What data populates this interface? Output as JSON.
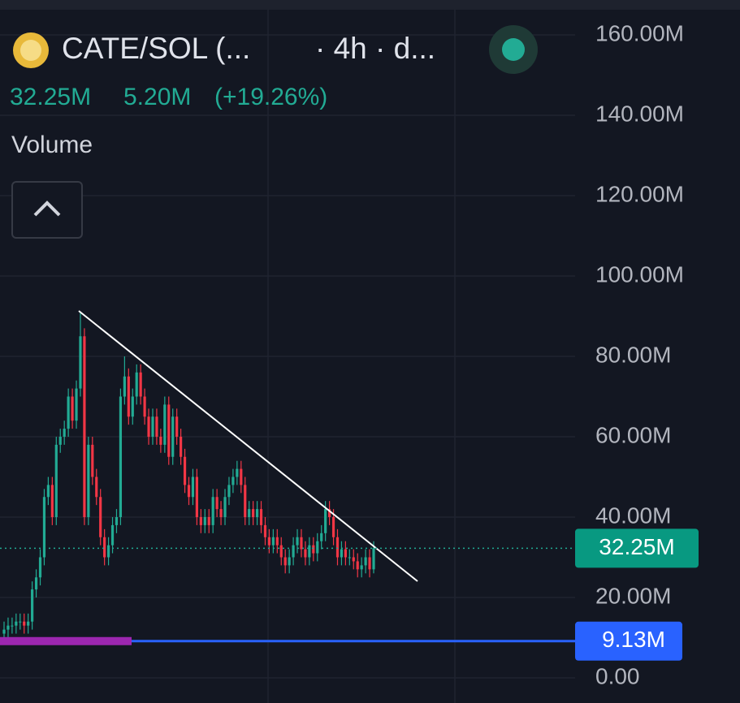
{
  "header": {
    "symbol": "CATE/SOL (...",
    "interval": "· 4h · d...",
    "last": "32.25M",
    "change": "5.20M",
    "change_pct": "(+19.26%)",
    "indicator": "Volume"
  },
  "chart_data": {
    "type": "candlestick",
    "up_color": "#22ab94",
    "down_color": "#f23645",
    "ylim": [
      0,
      160
    ],
    "yticks": [
      {
        "value": 0,
        "label": "0.00"
      },
      {
        "value": 20,
        "label": "20.00M"
      },
      {
        "value": 40,
        "label": "40.00M"
      },
      {
        "value": 60,
        "label": "60.00M"
      },
      {
        "value": 80,
        "label": "80.00M"
      },
      {
        "value": 100,
        "label": "100.00M"
      },
      {
        "value": 120,
        "label": "120.00M"
      },
      {
        "value": 140,
        "label": "140.00M"
      },
      {
        "value": 160,
        "label": "160.00M"
      }
    ],
    "grid": true,
    "open": [
      11,
      12,
      13,
      13,
      14,
      14,
      13,
      14,
      22,
      25,
      30,
      45,
      48,
      40,
      58,
      60,
      62,
      70,
      64,
      72,
      85,
      40,
      58,
      50,
      45,
      35,
      30,
      33,
      38,
      40,
      70,
      75,
      65,
      70,
      76,
      70,
      65,
      60,
      65,
      60,
      58,
      68,
      55,
      65,
      60,
      55,
      48,
      45,
      50,
      40,
      38,
      40,
      38,
      45,
      42,
      40,
      45,
      48,
      50,
      52,
      48,
      40,
      42,
      40,
      42,
      38,
      35,
      33,
      35,
      33,
      30,
      28,
      30,
      33,
      35,
      32,
      30,
      33,
      31,
      34,
      36,
      42,
      40,
      35,
      30,
      32,
      30,
      30,
      29,
      27,
      28,
      30,
      27
    ],
    "high": [
      14,
      15,
      15,
      16,
      16,
      16,
      16,
      24,
      27,
      32,
      47,
      50,
      50,
      60,
      62,
      64,
      72,
      72,
      74,
      91,
      87,
      60,
      60,
      52,
      47,
      37,
      35,
      40,
      42,
      72,
      80,
      77,
      72,
      78,
      78,
      72,
      67,
      67,
      67,
      62,
      70,
      70,
      67,
      67,
      62,
      57,
      50,
      52,
      52,
      42,
      42,
      42,
      47,
      47,
      44,
      47,
      50,
      52,
      54,
      54,
      50,
      44,
      44,
      44,
      44,
      40,
      37,
      37,
      37,
      35,
      32,
      32,
      35,
      37,
      37,
      34,
      35,
      35,
      36,
      38,
      44,
      44,
      42,
      37,
      34,
      34,
      32,
      32,
      31,
      30,
      32,
      32,
      34
    ],
    "low": [
      9,
      10,
      11,
      11,
      12,
      11,
      11,
      12,
      20,
      23,
      28,
      43,
      38,
      38,
      56,
      58,
      60,
      62,
      62,
      70,
      38,
      38,
      48,
      43,
      33,
      28,
      28,
      31,
      36,
      38,
      68,
      63,
      63,
      68,
      68,
      63,
      58,
      58,
      58,
      56,
      56,
      53,
      53,
      58,
      53,
      46,
      43,
      43,
      38,
      36,
      36,
      36,
      36,
      40,
      38,
      38,
      43,
      46,
      48,
      46,
      38,
      38,
      38,
      38,
      36,
      33,
      31,
      31,
      31,
      28,
      26,
      26,
      28,
      31,
      30,
      28,
      28,
      29,
      29,
      32,
      34,
      38,
      33,
      28,
      28,
      28,
      28,
      27,
      25,
      25,
      26,
      25,
      26
    ],
    "close": [
      12,
      13,
      13,
      14,
      14,
      13,
      14,
      22,
      25,
      30,
      45,
      48,
      40,
      58,
      60,
      62,
      70,
      64,
      72,
      85,
      40,
      58,
      50,
      45,
      35,
      30,
      33,
      38,
      40,
      70,
      75,
      65,
      70,
      76,
      70,
      65,
      60,
      65,
      60,
      58,
      68,
      55,
      65,
      60,
      55,
      48,
      45,
      50,
      40,
      38,
      40,
      38,
      45,
      42,
      40,
      45,
      48,
      50,
      52,
      48,
      40,
      42,
      40,
      42,
      38,
      35,
      33,
      35,
      33,
      30,
      28,
      30,
      33,
      35,
      32,
      30,
      33,
      31,
      34,
      36,
      42,
      40,
      35,
      30,
      32,
      30,
      30,
      29,
      27,
      28,
      30,
      27,
      32.25
    ],
    "last_price_label": "32.25M",
    "hline": {
      "value": 9.13,
      "label": "9.13M"
    }
  }
}
